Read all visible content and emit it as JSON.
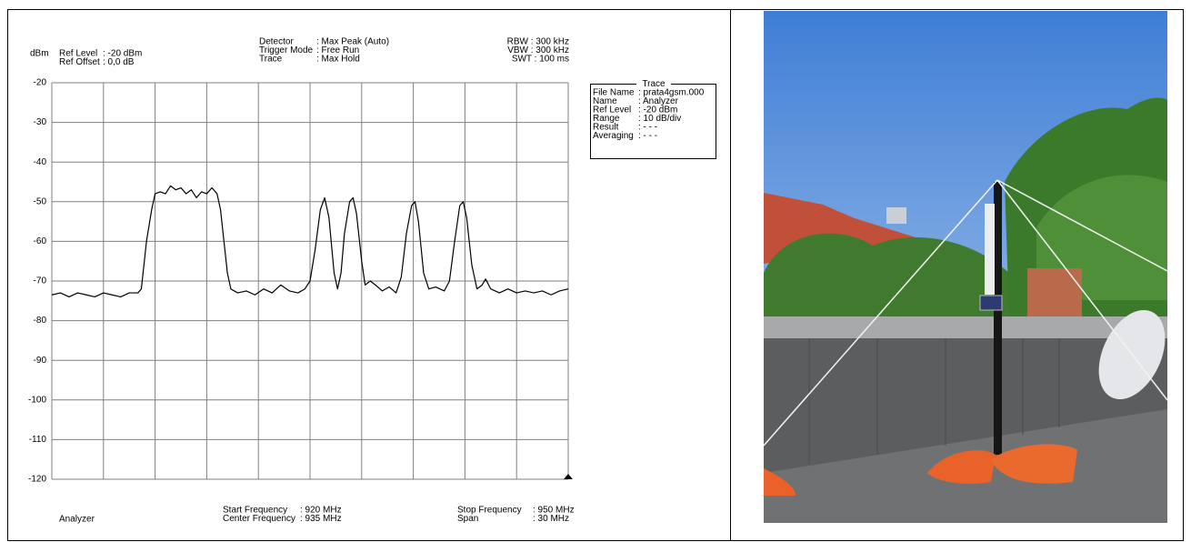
{
  "chart_data": {
    "type": "line",
    "y_label": "dBm",
    "settings_left": [
      [
        "Ref Level",
        ": -20  dBm"
      ],
      [
        "Ref Offset",
        ": 0,0 dB"
      ]
    ],
    "settings_mid": [
      [
        "Detector",
        ": Max Peak (Auto)"
      ],
      [
        "Trigger Mode",
        ": Free Run"
      ],
      [
        "Trace",
        ": Max Hold"
      ]
    ],
    "settings_right": [
      "RBW : 300 kHz",
      "VBW : 300 kHz",
      "SWT : 100 ms"
    ],
    "trace_box": {
      "title": "Trace",
      "lines": [
        [
          "File Name",
          ": prata4gsm.000"
        ],
        [
          "Name",
          ": Analyzer"
        ],
        [
          "Ref Level",
          ": -20 dBm"
        ],
        [
          "Range",
          ": 10 dB/div"
        ],
        [
          "Result",
          ": - - -"
        ],
        [
          "Averaging",
          ": - - -"
        ]
      ]
    },
    "footer_left": "Analyzer",
    "footer_mid": [
      [
        "Start Frequency",
        ": 920 MHz"
      ],
      [
        "Center Frequency",
        ": 935 MHz"
      ]
    ],
    "footer_right": [
      [
        "Stop Frequency",
        ": 950 MHz"
      ],
      [
        "Span",
        ":   30 MHz"
      ]
    ],
    "xlim": [
      920,
      950
    ],
    "xticks": [
      920,
      923,
      926,
      929,
      932,
      935,
      938,
      941,
      944,
      947,
      950
    ],
    "ylim": [
      -120,
      -20
    ],
    "yticks": [
      -20,
      -30,
      -40,
      -50,
      -60,
      -70,
      -80,
      -90,
      -100,
      -110,
      -120
    ],
    "grid": true,
    "series": [
      {
        "color": "#000000",
        "x": [
          920,
          920.5,
          921,
          921.5,
          922,
          922.5,
          923,
          923.5,
          924,
          924.5,
          925,
          925.2,
          925.5,
          925.8,
          926,
          926.3,
          926.6,
          926.9,
          927.2,
          927.5,
          927.8,
          928.1,
          928.4,
          928.7,
          929,
          929.3,
          929.6,
          929.8,
          930,
          930.2,
          930.4,
          930.8,
          931.3,
          931.8,
          932.3,
          932.8,
          933.3,
          933.8,
          934.3,
          934.7,
          935,
          935.3,
          935.6,
          935.85,
          936.1,
          936.4,
          936.6,
          936.8,
          937,
          937.3,
          937.5,
          937.7,
          938,
          938.2,
          938.5,
          938.8,
          939.2,
          939.6,
          940,
          940.3,
          940.6,
          940.9,
          941.1,
          941.3,
          941.6,
          941.9,
          942.3,
          942.8,
          943.1,
          943.4,
          943.7,
          943.9,
          944.1,
          944.4,
          944.7,
          945,
          945.2,
          945.5,
          946,
          946.5,
          947,
          947.5,
          948,
          948.5,
          949,
          949.5,
          950
        ],
        "values": [
          -73.5,
          -73,
          -74,
          -73,
          -73.5,
          -74,
          -73,
          -73.5,
          -74,
          -73,
          -73,
          -72,
          -60,
          -52,
          -48,
          -47.5,
          -48,
          -46,
          -47,
          -46.5,
          -48,
          -47,
          -49,
          -47.5,
          -48,
          -46.5,
          -48,
          -52,
          -60,
          -68,
          -72,
          -73,
          -72.5,
          -73.5,
          -72,
          -73,
          -71,
          -72.5,
          -73,
          -72,
          -70,
          -62,
          -52,
          -49,
          -54,
          -68,
          -72,
          -68,
          -58,
          -50,
          -49,
          -53,
          -65,
          -71,
          -70,
          -71,
          -72.5,
          -71.5,
          -73,
          -69,
          -58,
          -51,
          -50,
          -55,
          -68,
          -72,
          -71.5,
          -72.5,
          -70,
          -60,
          -51,
          -50,
          -54,
          -66,
          -72,
          -71,
          -69.5,
          -72,
          -73,
          -72,
          -73,
          -72.5,
          -73,
          -72.5,
          -73.5,
          -72.5,
          -72
        ]
      }
    ]
  }
}
